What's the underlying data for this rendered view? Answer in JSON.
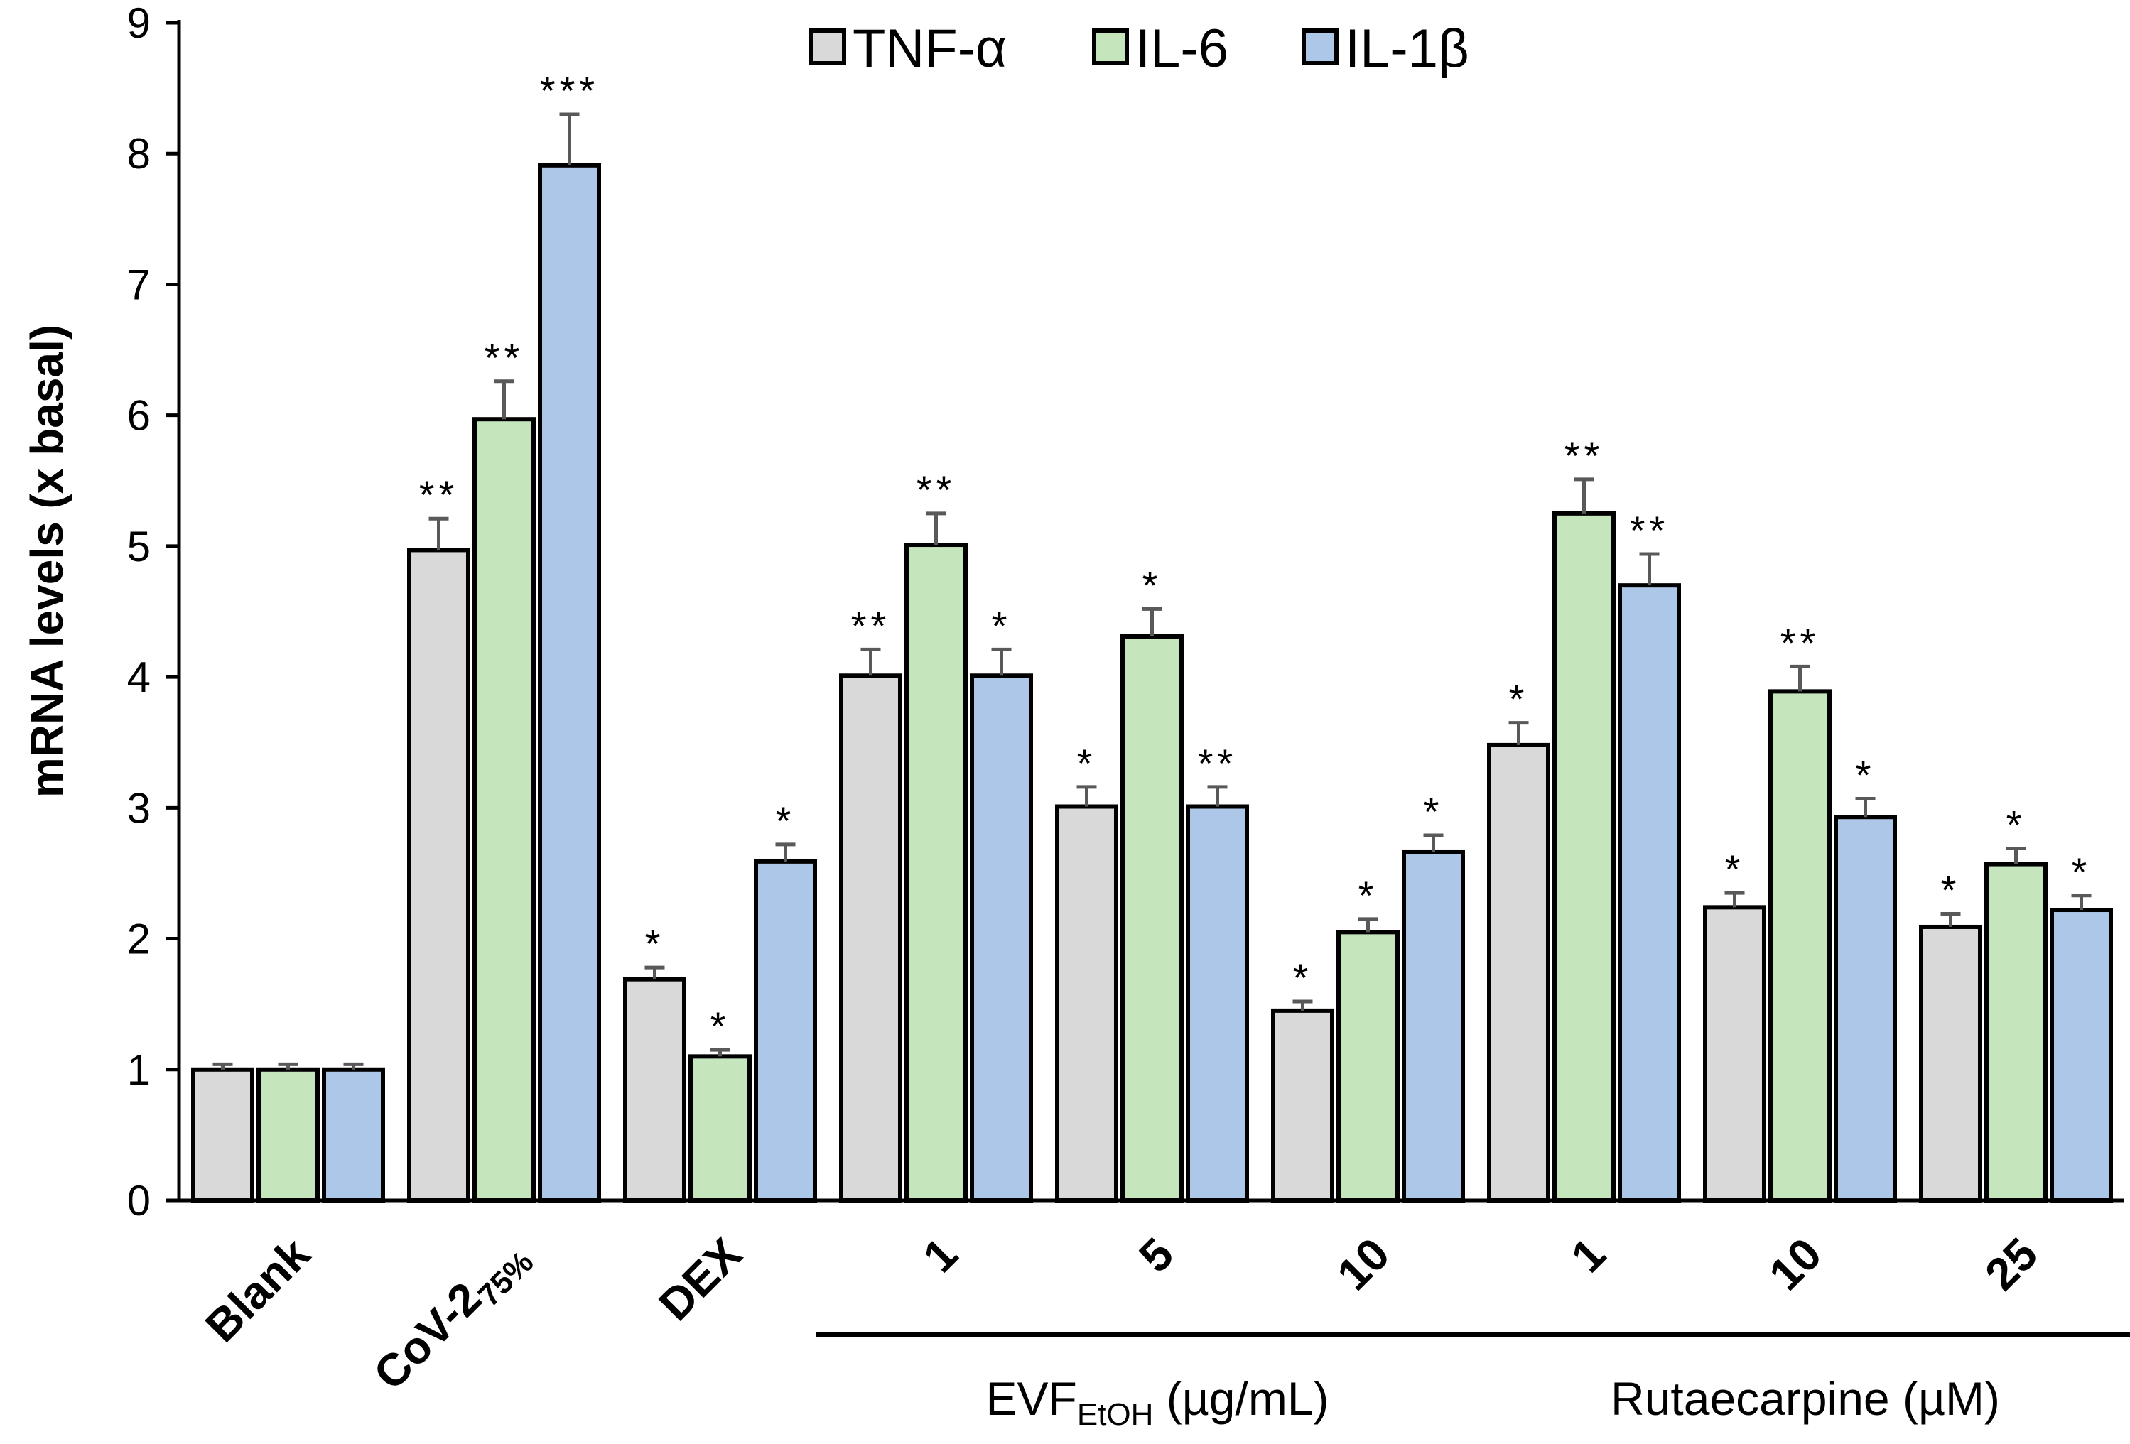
{
  "chart_data": {
    "type": "bar",
    "ylabel": "mRNA levels  (x basal)",
    "ylim": [
      0,
      9
    ],
    "yticks": [
      "0",
      "1",
      "2",
      "3",
      "4",
      "5",
      "6",
      "7",
      "8",
      "9"
    ],
    "categories": [
      "Blank",
      "CoV-2",
      "DEX",
      "1",
      "5",
      "10",
      "1",
      "10",
      "25"
    ],
    "category_subscripts": [
      "",
      "75%",
      "",
      "",
      "",
      "",
      "",
      "",
      ""
    ],
    "groups": [
      {
        "label": "EVF",
        "subscript": "EtOH",
        "suffix": " (µg/mL)",
        "categories": [
          3,
          5
        ]
      },
      {
        "label": "Rutaecarpine (µM)",
        "subscript": "",
        "suffix": "",
        "categories": [
          6,
          8
        ]
      }
    ],
    "series": [
      {
        "name": "TNF-α",
        "color": "#d9d9d9",
        "values": [
          1.0,
          4.97,
          1.69,
          4.01,
          3.01,
          1.45,
          3.48,
          2.24,
          2.09
        ],
        "errors": [
          0.04,
          0.24,
          0.09,
          0.2,
          0.15,
          0.07,
          0.17,
          0.11,
          0.1
        ],
        "significance": [
          "",
          "**",
          "*",
          "**",
          "*",
          "*",
          "*",
          "*",
          "*"
        ]
      },
      {
        "name": "IL-6",
        "color": "#c5e6bd",
        "values": [
          1.0,
          5.97,
          1.1,
          5.01,
          4.31,
          2.05,
          5.25,
          3.89,
          2.57
        ],
        "errors": [
          0.04,
          0.29,
          0.05,
          0.24,
          0.21,
          0.1,
          0.26,
          0.19,
          0.12
        ],
        "significance": [
          "",
          "**",
          "*",
          "**",
          "*",
          "*",
          "**",
          "**",
          "*"
        ]
      },
      {
        "name": "IL-1β",
        "color": "#adc7e8",
        "values": [
          1.0,
          7.91,
          2.59,
          4.01,
          3.01,
          2.66,
          4.7,
          2.93,
          2.22
        ],
        "errors": [
          0.04,
          0.39,
          0.13,
          0.2,
          0.15,
          0.13,
          0.24,
          0.14,
          0.11
        ],
        "significance": [
          "",
          "***",
          "*",
          "*",
          "**",
          "*",
          "**",
          "*",
          "*"
        ]
      }
    ],
    "legend_position": "top-center",
    "grid": false
  }
}
